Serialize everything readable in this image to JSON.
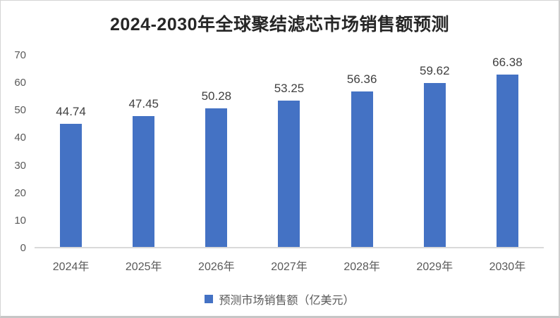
{
  "title": "2024-2030年全球聚结滤芯市场销售额预测",
  "chart_data": {
    "type": "bar",
    "title": "2024-2030年全球聚结滤芯市场销售额预测",
    "categories": [
      "2024年",
      "2025年",
      "2026年",
      "2027年",
      "2028年",
      "2029年",
      "2030年"
    ],
    "values": [
      44.74,
      47.45,
      50.28,
      53.25,
      56.36,
      59.62,
      66.38
    ],
    "value_labels": [
      "44.74",
      "47.45",
      "50.28",
      "53.25",
      "56.36",
      "59.62",
      "66.38"
    ],
    "xlabel": "",
    "ylabel": "",
    "ylim": [
      0,
      70
    ],
    "yticks": [
      0,
      10,
      20,
      30,
      40,
      50,
      60,
      70
    ],
    "grid": false,
    "legend_entries": [
      "预测市场销售额（亿美元）"
    ],
    "legend_position": "bottom",
    "bar_color": "#4472C4"
  },
  "legend": {
    "label": "预测市场销售额（亿美元）",
    "marker_color": "#4472C4"
  },
  "colors": {
    "bar": "#4472C4",
    "title_text": "#262626",
    "axis_text": "#595959",
    "value_text": "#404040",
    "axis_line": "#d9d9d9",
    "card_border": "#cccccc",
    "background": "#ffffff"
  }
}
